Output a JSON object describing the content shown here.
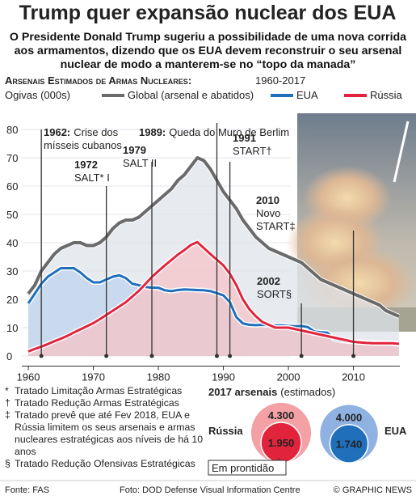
{
  "title": "Trump quer expansão nuclear dos EUA",
  "subtitle": "O Presidente Donald Trump sugeriu a possibilidade de uma nova corrida aos armamentos, dizendo que os EUA devem reconstruir o seu arsenal nuclear de modo a manterem-se no “topo da manada”",
  "chart_data": [
    {
      "type": "line",
      "title": "Arsenais Estimados de Armas Nucleares:",
      "subtitle": "1960-2017",
      "y_label": "Ogivas (000s)",
      "legend": "top",
      "grid": true,
      "x": [
        1960,
        1961,
        1962,
        1963,
        1964,
        1965,
        1966,
        1967,
        1968,
        1969,
        1970,
        1971,
        1972,
        1973,
        1974,
        1975,
        1976,
        1977,
        1978,
        1979,
        1980,
        1981,
        1982,
        1983,
        1984,
        1985,
        1986,
        1987,
        1988,
        1989,
        1990,
        1991,
        1992,
        1993,
        1994,
        1995,
        1996,
        1997,
        1998,
        1999,
        2000,
        2001,
        2002,
        2003,
        2004,
        2005,
        2006,
        2007,
        2008,
        2009,
        2010,
        2011,
        2012,
        2013,
        2014,
        2015,
        2016,
        2017
      ],
      "xlim": [
        1959,
        2019
      ],
      "xticks": [
        1960,
        1970,
        1980,
        1990,
        2000,
        2010
      ],
      "ylim": [
        -3,
        84
      ],
      "yticks": [
        0,
        10,
        20,
        30,
        40,
        50,
        60,
        70,
        80
      ],
      "series": [
        {
          "name": "Global (arsenal e abatidos)",
          "color": "#6b6b6b",
          "area": "#dfe3ea",
          "values": [
            22,
            25,
            30,
            33,
            36,
            38,
            39,
            40,
            40,
            39,
            39,
            40,
            42,
            45,
            47,
            48,
            48,
            49,
            51,
            53,
            55,
            57,
            59,
            62,
            64,
            67,
            70,
            69,
            66,
            62,
            58,
            55,
            52,
            48,
            45,
            42,
            40,
            38,
            37,
            36,
            35,
            34,
            33,
            31,
            29,
            27,
            26,
            25,
            24,
            23,
            22,
            21,
            20,
            19,
            18,
            16,
            15,
            14
          ]
        },
        {
          "name": "EUA",
          "color": "#1f6fbb",
          "area": "#bfd3ee",
          "values": [
            18.6,
            22,
            25.5,
            28,
            29.5,
            31,
            31,
            31,
            29.5,
            27.5,
            26,
            26,
            27,
            28,
            28.5,
            27.5,
            25.5,
            25,
            24.4,
            24.1,
            24.1,
            23.2,
            22.9,
            23.3,
            23.5,
            23.4,
            23.3,
            23.2,
            22.9,
            22.2,
            21.4,
            19,
            13.7,
            11.5,
            11,
            10.9,
            11,
            10.9,
            10.8,
            10.8,
            10.6,
            10.5,
            10.6,
            10.2,
            8.6,
            8.4,
            8.2,
            6,
            5.5,
            5.2,
            5,
            5,
            4.8,
            4.7,
            4.7,
            4.6,
            4.5,
            4
          ]
        },
        {
          "name": "Rússia",
          "color": "#e1243c",
          "area": "#f5c3c7",
          "values": [
            1.6,
            2.5,
            3.3,
            4.2,
            5.2,
            6.1,
            7.1,
            8.3,
            9.4,
            10.5,
            11.6,
            13,
            14.5,
            16,
            17.5,
            19,
            21,
            23,
            25.4,
            27.9,
            30,
            32,
            33.9,
            35.8,
            37.4,
            39.2,
            40.2,
            38.1,
            36,
            34,
            32,
            29,
            25,
            20,
            16.5,
            14,
            12,
            11,
            10,
            10,
            10,
            9.5,
            9,
            8.5,
            8,
            7.5,
            7,
            6.5,
            6,
            5.5,
            5,
            4.8,
            4.6,
            4.5,
            4.5,
            4.5,
            4.5,
            4.3
          ]
        }
      ],
      "annotations": [
        {
          "x": {
            "value": 1962,
            "label": "1962:"
          },
          "text": [
            "Crise dos",
            "mísseis cubanos"
          ]
        },
        {
          "x": 1972,
          "text": [
            "SALT* I"
          ]
        },
        {
          "x": 1979,
          "text": [
            "SALT II"
          ]
        },
        {
          "x": {
            "value": 1989,
            "label": "1989:"
          },
          "text": [
            "Queda do Muro de Berlim"
          ]
        },
        {
          "x": 1991,
          "text": [
            "START†"
          ]
        },
        {
          "x": 2010,
          "text": [
            "Novo",
            "START‡"
          ]
        },
        {
          "x": 2002,
          "text": [
            "SORT§"
          ]
        }
      ]
    },
    {
      "type": "bubble",
      "title": "2017 arsenais",
      "subtitle": "(estimados)",
      "categories": [
        "Rússia",
        "EUA"
      ],
      "series": [
        {
          "colors": [
            "#f3a1a5",
            "#8fb2e3"
          ],
          "values": [
            4300,
            4000
          ],
          "value_labels": [
            "4.300",
            "4.000"
          ]
        },
        {
          "name": "Em prontidão",
          "colors": [
            "#e1243c",
            "#1f6fbb"
          ],
          "values": [
            1950,
            1740
          ],
          "value_labels": [
            "1.950",
            "1.740"
          ]
        }
      ]
    }
  ],
  "footnotes": [
    {
      "symbol": "*",
      "text": "Tratado Limitação Armas Estratégicas"
    },
    {
      "symbol": "†",
      "text": "Tratado Redução Armas Estratégicas"
    },
    {
      "symbol": "‡",
      "text": "Tratado prevê que até Fev 2018, EUA e Rússia limitem os seus arsenais e armas nucleares estratégicas aos níveis de há 10 anos"
    },
    {
      "symbol": "§",
      "text": "Tratado Redução Ofensivas Estratégicas"
    }
  ],
  "source": "Fonte: FAS",
  "photo_credit": "Foto: DOD Defense Visual Information Centre",
  "copyright": "© GRAPHIC NEWS"
}
